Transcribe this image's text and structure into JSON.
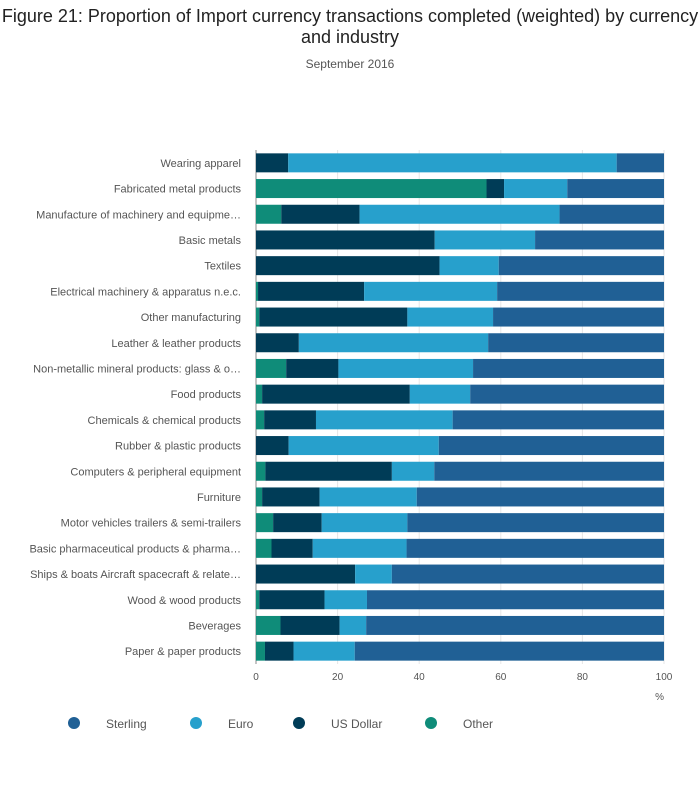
{
  "chart_data": {
    "type": "bar",
    "orientation": "horizontal",
    "stacked": true,
    "title": "Figure 21: Proportion of Import currency transactions completed (weighted) by currency and industry",
    "subtitle": "September 2016",
    "xlabel": "%",
    "xlim": [
      0,
      100
    ],
    "xticks": [
      "0",
      "20",
      "40",
      "60",
      "80",
      "100"
    ],
    "grid": true,
    "legend_position": "bottom",
    "categories": [
      "Wearing apparel",
      "Fabricated metal products",
      "Manufacture of machinery and equipme…",
      "Basic metals",
      "Textiles",
      "Electrical machinery & apparatus n.e.c.",
      "Other manufacturing",
      "Leather & leather products",
      "Non-metallic mineral products: glass & o…",
      "Food products",
      "Chemicals & chemical products",
      "Rubber & plastic products",
      "Computers & peripheral equipment",
      "Furniture",
      "Motor vehicles trailers & semi-trailers",
      "Basic pharmaceutical products & pharma…",
      "Ships & boats Aircraft spacecraft & relate…",
      "Wood & wood products",
      "Beverages",
      "Paper & paper products"
    ],
    "series": [
      {
        "name": "Other",
        "color": "#0f8c79",
        "values": [
          0,
          56.5,
          6.2,
          0,
          0,
          0.5,
          0.8,
          0,
          7.4,
          1.5,
          2.0,
          0,
          2.3,
          1.5,
          4.2,
          3.8,
          0,
          0.8,
          6.0,
          2.2
        ]
      },
      {
        "name": "US Dollar",
        "color": "#003c57",
        "values": [
          7.9,
          4.3,
          19.2,
          43.8,
          45.0,
          26.0,
          36.3,
          10.5,
          12.8,
          36.2,
          12.7,
          8.0,
          31.0,
          14.1,
          11.9,
          10.1,
          24.3,
          16.0,
          14.5,
          7.0
        ]
      },
      {
        "name": "Euro",
        "color": "#27a0cc",
        "values": [
          80.5,
          15.5,
          49.0,
          24.6,
          14.5,
          32.6,
          21.0,
          46.4,
          33.0,
          14.8,
          33.5,
          36.8,
          10.4,
          23.8,
          21.0,
          23.0,
          9.0,
          10.4,
          6.5,
          15.0
        ]
      },
      {
        "name": "Sterling",
        "color": "#206095",
        "values": [
          11.6,
          23.7,
          25.6,
          31.6,
          40.5,
          40.9,
          41.9,
          43.1,
          46.8,
          47.5,
          51.8,
          55.2,
          56.3,
          60.6,
          62.9,
          63.1,
          66.7,
          72.8,
          73.0,
          75.8
        ]
      }
    ],
    "legend": [
      {
        "name": "Sterling",
        "color": "#206095"
      },
      {
        "name": "Euro",
        "color": "#27a0cc"
      },
      {
        "name": "US Dollar",
        "color": "#003c57"
      },
      {
        "name": "Other",
        "color": "#0f8c79"
      }
    ]
  }
}
